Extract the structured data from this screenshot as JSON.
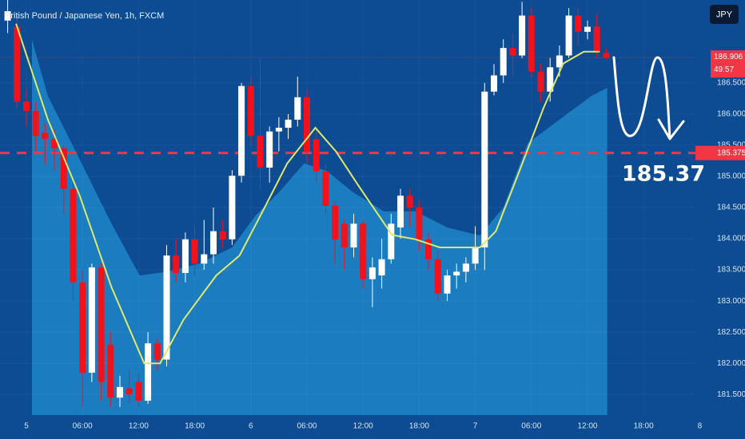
{
  "chart_data": {
    "type": "candlestick",
    "title": "British Pound / Japanese Yen, 1h, FXCM",
    "currency": "JPY",
    "x": [
      -2,
      -1,
      0,
      1,
      2,
      3,
      4,
      5,
      6,
      7,
      8,
      9,
      10,
      11,
      12,
      13,
      14,
      15,
      16,
      17,
      18,
      19,
      20,
      21,
      22,
      23,
      24,
      25,
      26,
      27,
      28,
      29,
      30,
      31,
      32,
      33,
      34,
      35,
      36,
      37,
      38,
      39,
      40,
      41,
      42,
      43,
      44,
      45,
      46,
      47,
      48,
      49,
      50,
      51,
      52,
      53,
      54,
      55,
      56,
      57,
      58,
      59,
      60,
      61,
      62
    ],
    "open": [
      187.5,
      187.4,
      186.2,
      186.05,
      185.7,
      185.6,
      185.45,
      184.8,
      183.3,
      181.85,
      183.54,
      182.3,
      181.45,
      181.6,
      181.7,
      181.4,
      182.32,
      182.06,
      183.73,
      183.45,
      183.99,
      183.6,
      183.75,
      184.12,
      183.99,
      185.01,
      186.45,
      185.65,
      185.14,
      185.72,
      185.78,
      185.91,
      186.27,
      185.6,
      185.08,
      184.53,
      184.24,
      183.86,
      184.24,
      183.35,
      183.41,
      183.67,
      184.18,
      184.69,
      184.5,
      183.99,
      183.67,
      183.12,
      183.41,
      183.47,
      183.6,
      183.86,
      186.36,
      186.62,
      187.06,
      186.94,
      187.58,
      186.68,
      186.36,
      186.75,
      186.94,
      187.58,
      187.32,
      187.4,
      186.98
    ],
    "high": [
      187.85,
      187.6,
      186.4,
      186.2,
      185.85,
      185.75,
      185.5,
      184.9,
      183.5,
      183.6,
      183.6,
      182.5,
      181.8,
      181.9,
      181.85,
      182.5,
      182.4,
      183.9,
      184.0,
      184.1,
      184.2,
      184.3,
      184.5,
      184.3,
      185.1,
      186.5,
      186.6,
      186.9,
      185.8,
      185.95,
      186.0,
      186.6,
      186.4,
      185.8,
      185.2,
      184.6,
      184.3,
      184.4,
      184.3,
      183.7,
      184.0,
      184.4,
      184.8,
      184.8,
      184.6,
      184.1,
      183.8,
      183.5,
      183.6,
      183.7,
      184.2,
      186.5,
      186.8,
      187.2,
      187.3,
      187.8,
      187.7,
      186.8,
      186.9,
      187.1,
      187.7,
      187.7,
      187.5,
      187.6,
      187.05
    ],
    "low": [
      187.3,
      186.1,
      185.8,
      185.4,
      185.2,
      185.1,
      184.4,
      183.0,
      181.3,
      181.7,
      181.4,
      181.3,
      181.3,
      181.35,
      181.3,
      181.35,
      181.9,
      181.95,
      183.3,
      183.3,
      183.4,
      183.5,
      183.6,
      183.85,
      183.9,
      184.9,
      185.5,
      184.8,
      184.9,
      185.4,
      185.6,
      185.8,
      185.2,
      184.9,
      184.4,
      183.6,
      183.5,
      183.7,
      183.2,
      182.9,
      183.2,
      183.6,
      184.0,
      184.2,
      183.8,
      183.5,
      183.0,
      183.0,
      183.2,
      183.3,
      183.5,
      183.5,
      186.3,
      186.5,
      186.6,
      186.9,
      186.6,
      186.2,
      186.2,
      186.6,
      186.9,
      187.1,
      187.2,
      186.9,
      186.88
    ],
    "close": [
      187.65,
      186.2,
      186.05,
      185.65,
      185.6,
      185.45,
      184.8,
      183.3,
      181.85,
      183.54,
      181.7,
      181.45,
      181.62,
      181.5,
      181.4,
      182.32,
      182.06,
      183.73,
      183.45,
      183.99,
      183.6,
      183.75,
      184.12,
      183.99,
      185.01,
      186.45,
      185.65,
      185.14,
      185.72,
      185.78,
      185.91,
      186.27,
      185.4,
      185.08,
      184.53,
      183.99,
      183.86,
      184.24,
      183.35,
      183.54,
      183.67,
      184.24,
      184.69,
      184.5,
      183.99,
      183.67,
      183.12,
      183.41,
      183.47,
      183.6,
      183.86,
      186.36,
      186.62,
      187.06,
      186.94,
      187.58,
      186.68,
      186.36,
      186.75,
      186.94,
      187.58,
      187.32,
      187.4,
      187.0,
      186.906
    ],
    "up_color": "#ffffff",
    "down_color": "#f2121c",
    "ma": {
      "color": "#dfe86a",
      "x": [
        -1.1,
        2.3,
        5.7,
        9.1,
        12.6,
        14.3,
        16.8,
        20.3,
        22.8,
        25.4,
        27.9,
        30.9,
        33.1,
        35.6,
        39.1,
        41.6,
        44.2,
        48.5,
        50.2,
        52.7,
        55.3,
        57.4,
        59.6,
        61.3
      ],
      "values": [
        187.45,
        185.91,
        184.69,
        183.22,
        182.0,
        182.0,
        182.7,
        183.41,
        183.73,
        184.48,
        185.21,
        185.78,
        185.4,
        184.83,
        184.06,
        183.99,
        183.86,
        183.86,
        184.12,
        185.08,
        186.1,
        186.81,
        187.0,
        187.0
      ]
    },
    "band": {
      "color": "#1b7dc0",
      "x": [
        0.6,
        2.3,
        5.7,
        9.1,
        12.1,
        15.1,
        18.5,
        22.0,
        24.5,
        27.1,
        29.7,
        32.2,
        34.8,
        38.2,
        41.6,
        45.0,
        48.5,
        51.0,
        53.6,
        57.0,
        60.4,
        62.1
      ],
      "values": [
        187.19,
        186.29,
        185.27,
        184.24,
        183.41,
        183.47,
        183.6,
        183.86,
        184.37,
        184.76,
        185.21,
        185.08,
        184.76,
        184.44,
        184.44,
        184.18,
        184.05,
        184.5,
        185.53,
        185.91,
        186.29,
        186.42
      ]
    },
    "level": {
      "value": 185.375,
      "color": "#f23645"
    },
    "annotation": "185.37",
    "last_price": 186.906,
    "countdown": "49:57",
    "xlim": [
      -2.82,
      71.54
    ],
    "xticks": [
      {
        "value": 0,
        "label": "5"
      },
      {
        "value": 6,
        "label": "06:00"
      },
      {
        "value": 12,
        "label": "12:00"
      },
      {
        "value": 18,
        "label": "18:00"
      },
      {
        "value": 24,
        "label": "6"
      },
      {
        "value": 30,
        "label": "06:00"
      },
      {
        "value": 36,
        "label": "12:00"
      },
      {
        "value": 42,
        "label": "18:00"
      },
      {
        "value": 48,
        "label": "7"
      },
      {
        "value": 54,
        "label": "06:00"
      },
      {
        "value": 60,
        "label": "12:00"
      },
      {
        "value": 66,
        "label": "18:00"
      },
      {
        "value": 72,
        "label": "8"
      }
    ],
    "ylim": [
      181.17,
      187.83
    ],
    "yticks": [
      {
        "value": 181.5,
        "label": "181.500"
      },
      {
        "value": 182,
        "label": "182.000"
      },
      {
        "value": 182.5,
        "label": "182.500"
      },
      {
        "value": 183,
        "label": "183.000"
      },
      {
        "value": 183.5,
        "label": "183.500"
      },
      {
        "value": 184,
        "label": "184.000"
      },
      {
        "value": 184.5,
        "label": "184.500"
      },
      {
        "value": 185,
        "label": "185.000"
      },
      {
        "value": 185.5,
        "label": "185.500"
      },
      {
        "value": 186,
        "label": "186.000"
      },
      {
        "value": 186.5,
        "label": "186.500"
      }
    ]
  }
}
